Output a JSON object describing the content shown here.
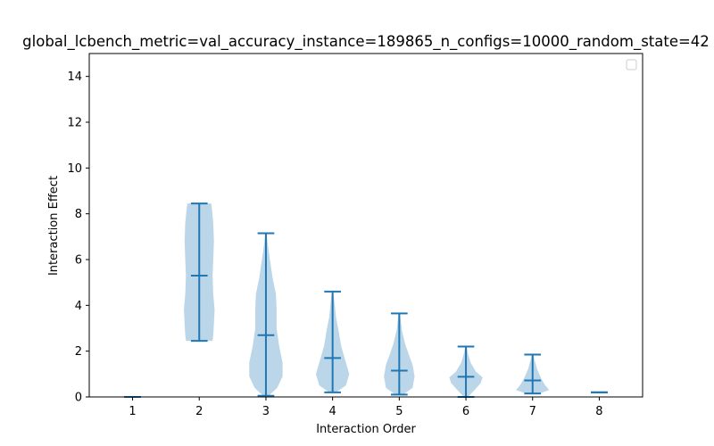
{
  "chart_data": {
    "type": "violin",
    "title": "global_lcbench_metric=val_accuracy_instance=189865_n_configs=10000_random_state=42",
    "xlabel": "Interaction Order",
    "ylabel": "Interaction Effect",
    "xlim": [
      0.35,
      8.65
    ],
    "ylim": [
      0,
      15
    ],
    "xticks": [
      1,
      2,
      3,
      4,
      5,
      6,
      7,
      8
    ],
    "yticks": [
      0,
      2,
      4,
      6,
      8,
      10,
      12,
      14
    ],
    "legend": {
      "placement": "top-right",
      "entries": []
    },
    "grid": false,
    "colors": {
      "body": "#1f77b4",
      "body_alpha": 0.3,
      "lines": "#1f77b4"
    },
    "violins": [
      {
        "x": 1,
        "min": 0.0,
        "median": 0.0,
        "max": 0.0,
        "profile": []
      },
      {
        "x": 2,
        "min": 2.45,
        "median": 5.3,
        "max": 8.45,
        "profile": [
          [
            2.45,
            0.2
          ],
          [
            2.7,
            0.21
          ],
          [
            3.2,
            0.22
          ],
          [
            3.8,
            0.23
          ],
          [
            4.5,
            0.21
          ],
          [
            5.3,
            0.2
          ],
          [
            6.0,
            0.21
          ],
          [
            6.8,
            0.22
          ],
          [
            7.6,
            0.21
          ],
          [
            8.2,
            0.19
          ],
          [
            8.45,
            0.18
          ]
        ]
      },
      {
        "x": 3,
        "min": 0.05,
        "median": 2.7,
        "max": 7.15,
        "profile": [
          [
            0.05,
            0.04
          ],
          [
            0.4,
            0.17
          ],
          [
            0.9,
            0.25
          ],
          [
            1.5,
            0.25
          ],
          [
            2.2,
            0.2
          ],
          [
            3.0,
            0.16
          ],
          [
            3.8,
            0.16
          ],
          [
            4.5,
            0.15
          ],
          [
            5.2,
            0.1
          ],
          [
            6.0,
            0.06
          ],
          [
            6.6,
            0.03
          ],
          [
            7.15,
            0.01
          ]
        ]
      },
      {
        "x": 4,
        "min": 0.2,
        "median": 1.7,
        "max": 4.6,
        "profile": [
          [
            0.2,
            0.05
          ],
          [
            0.5,
            0.2
          ],
          [
            1.0,
            0.25
          ],
          [
            1.5,
            0.2
          ],
          [
            2.2,
            0.13
          ],
          [
            2.9,
            0.09
          ],
          [
            3.5,
            0.05
          ],
          [
            4.1,
            0.03
          ],
          [
            4.6,
            0.01
          ]
        ]
      },
      {
        "x": 5,
        "min": 0.1,
        "median": 1.15,
        "max": 3.65,
        "profile": [
          [
            0.1,
            0.06
          ],
          [
            0.4,
            0.2
          ],
          [
            0.9,
            0.23
          ],
          [
            1.4,
            0.2
          ],
          [
            1.8,
            0.15
          ],
          [
            2.3,
            0.09
          ],
          [
            2.9,
            0.04
          ],
          [
            3.4,
            0.02
          ],
          [
            3.65,
            0.01
          ]
        ]
      },
      {
        "x": 6,
        "min": 0.0,
        "median": 0.88,
        "max": 2.2,
        "profile": [
          [
            0.0,
            0.03
          ],
          [
            0.3,
            0.13
          ],
          [
            0.6,
            0.22
          ],
          [
            0.85,
            0.25
          ],
          [
            1.1,
            0.15
          ],
          [
            1.5,
            0.07
          ],
          [
            1.9,
            0.03
          ],
          [
            2.2,
            0.01
          ]
        ]
      },
      {
        "x": 7,
        "min": 0.15,
        "median": 0.72,
        "max": 1.85,
        "profile": [
          [
            0.15,
            0.1
          ],
          [
            0.3,
            0.25
          ],
          [
            0.5,
            0.19
          ],
          [
            0.8,
            0.13
          ],
          [
            1.2,
            0.07
          ],
          [
            1.6,
            0.03
          ],
          [
            1.85,
            0.01
          ]
        ]
      },
      {
        "x": 8,
        "min": 0.2,
        "median": 0.2,
        "max": 0.2,
        "profile": []
      }
    ]
  }
}
